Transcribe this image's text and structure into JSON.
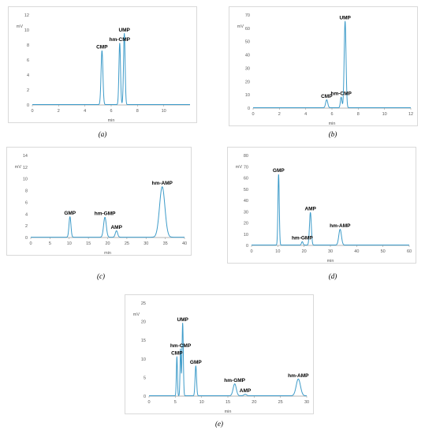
{
  "accent_color": "#3d9bc9",
  "chart_data": [
    {
      "type": "line",
      "caption": "(a)",
      "ylabel": "mV",
      "xlabel": "min",
      "xlim": [
        0,
        12
      ],
      "ylim": [
        0,
        12
      ],
      "xticks": [
        0,
        2,
        4,
        6,
        8,
        10
      ],
      "yticks": [
        0,
        2,
        4,
        6,
        8,
        10,
        12
      ],
      "peaks": [
        {
          "label": "CMP",
          "x": 5.3,
          "y": 7.2,
          "width": 0.07
        },
        {
          "label": "hm-CMP",
          "x": 6.65,
          "y": 8.2,
          "width": 0.06
        },
        {
          "label": "UMP",
          "x": 7.0,
          "y": 9.5,
          "width": 0.06
        }
      ]
    },
    {
      "type": "line",
      "caption": "(b)",
      "ylabel": "mV",
      "xlabel": "min",
      "xlim": [
        0,
        12
      ],
      "ylim": [
        0,
        70
      ],
      "xticks": [
        0,
        2,
        4,
        6,
        8,
        10,
        12
      ],
      "yticks": [
        0,
        10,
        20,
        30,
        40,
        50,
        60,
        70
      ],
      "peaks": [
        {
          "label": "CMP",
          "x": 5.6,
          "y": 6,
          "width": 0.08
        },
        {
          "label": "hm-CMP",
          "x": 6.7,
          "y": 8,
          "width": 0.06
        },
        {
          "label": "UMP",
          "x": 7.0,
          "y": 65,
          "width": 0.07
        }
      ]
    },
    {
      "type": "line",
      "caption": "(c)",
      "ylabel": "mV",
      "xlabel": "min",
      "xlim": [
        0,
        40
      ],
      "ylim": [
        0,
        14
      ],
      "xticks": [
        0,
        5,
        10,
        15,
        20,
        25,
        30,
        35,
        40
      ],
      "yticks": [
        0,
        2,
        4,
        6,
        8,
        10,
        12,
        14
      ],
      "peaks": [
        {
          "label": "GMP",
          "x": 10.2,
          "y": 3.5,
          "width": 0.25
        },
        {
          "label": "hm-GMP",
          "x": 19.3,
          "y": 3.4,
          "width": 0.35
        },
        {
          "label": "AMP",
          "x": 22.3,
          "y": 1.1,
          "width": 0.3
        },
        {
          "label": "hm-AMP",
          "x": 34.2,
          "y": 8.6,
          "width": 0.7
        }
      ]
    },
    {
      "type": "line",
      "caption": "(d)",
      "ylabel": "mV",
      "xlabel": "min",
      "xlim": [
        0,
        60
      ],
      "ylim": [
        0,
        80
      ],
      "xticks": [
        0,
        10,
        20,
        30,
        40,
        50,
        60
      ],
      "yticks": [
        0,
        10,
        20,
        30,
        40,
        50,
        60,
        70,
        80
      ],
      "peaks": [
        {
          "label": "GMP",
          "x": 10.3,
          "y": 63,
          "width": 0.25
        },
        {
          "label": "hm-GMP",
          "x": 19.3,
          "y": 3,
          "width": 0.3
        },
        {
          "label": "AMP",
          "x": 22.4,
          "y": 29,
          "width": 0.35
        },
        {
          "label": "hm-AMP",
          "x": 33.7,
          "y": 14,
          "width": 0.5
        }
      ]
    },
    {
      "type": "line",
      "caption": "(e)",
      "ylabel": "mV",
      "xlabel": "min",
      "xlim": [
        0,
        30
      ],
      "ylim": [
        0,
        25
      ],
      "xticks": [
        0,
        5,
        10,
        15,
        20,
        25,
        30
      ],
      "yticks": [
        0,
        5,
        10,
        15,
        20,
        25
      ],
      "peaks": [
        {
          "label": "CMP",
          "x": 5.3,
          "y": 10.5,
          "width": 0.1
        },
        {
          "label": "hm-CMP",
          "x": 6.0,
          "y": 12.5,
          "width": 0.1
        },
        {
          "label": "UMP",
          "x": 6.4,
          "y": 19.5,
          "width": 0.12
        },
        {
          "label": "GMP",
          "x": 8.9,
          "y": 8,
          "width": 0.14
        },
        {
          "label": "hm-GMP",
          "x": 16.3,
          "y": 3.2,
          "width": 0.3
        },
        {
          "label": "AMP",
          "x": 18.3,
          "y": 0.4,
          "width": 0.25
        },
        {
          "label": "hm-AMP",
          "x": 28.4,
          "y": 4.5,
          "width": 0.4
        }
      ]
    }
  ]
}
